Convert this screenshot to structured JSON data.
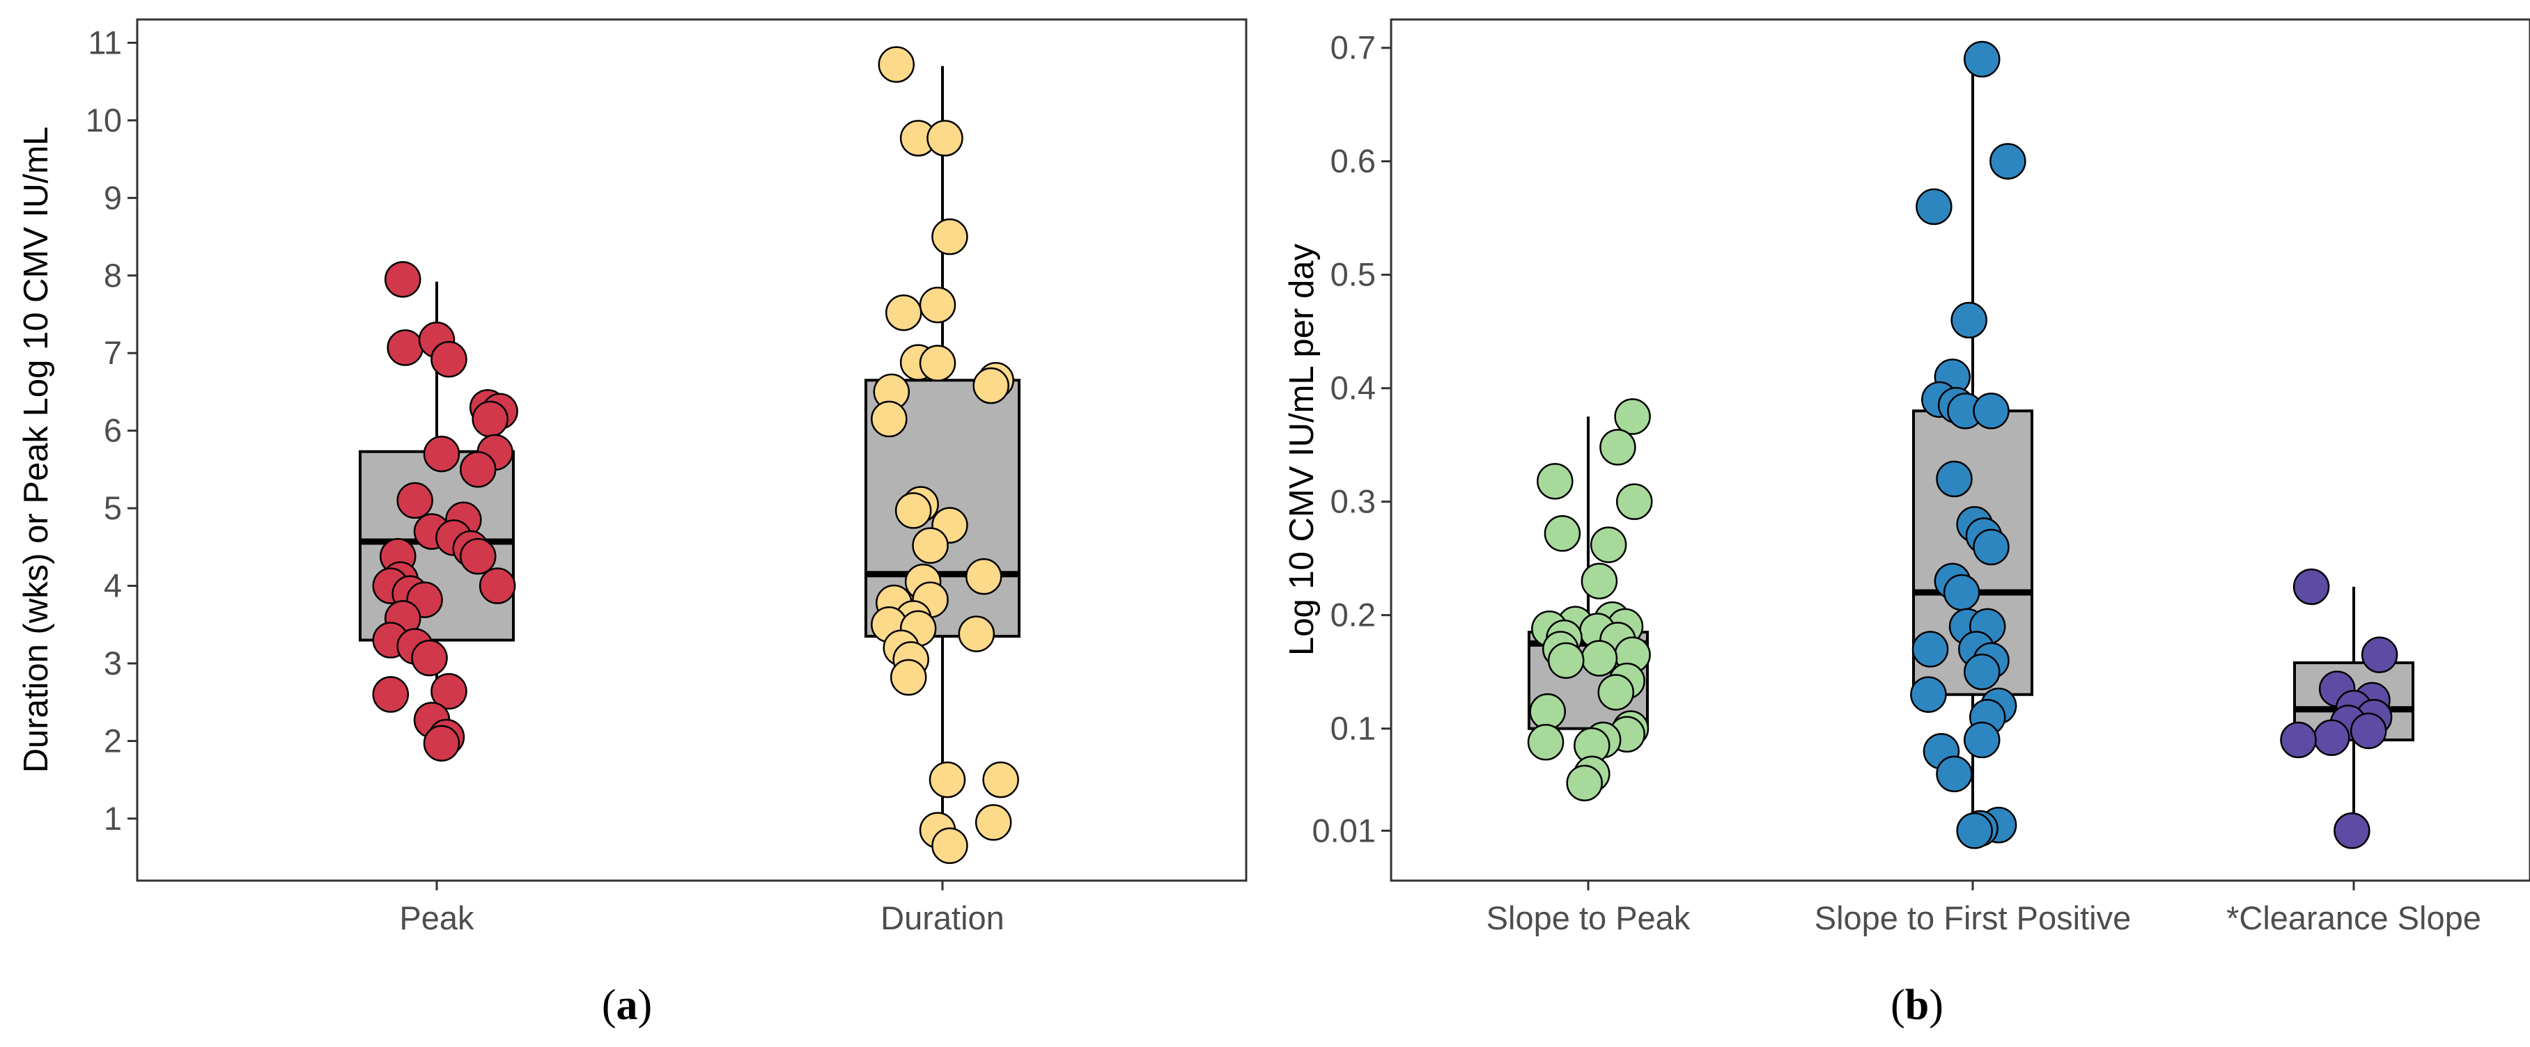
{
  "colors": {
    "peak": "#d1384b",
    "duration": "#fdd98a",
    "slope_to_peak": "#a6d99a",
    "slope_to_first_positive": "#2e86c1",
    "clearance_slope": "#5e4ba3",
    "box_fill": "#b3b3b3"
  },
  "chart_data": [
    {
      "type": "box",
      "panel_label": "a",
      "ylabel": "Duration (wks) or Peak Log 10 CMV IU/mL",
      "xlabel": "",
      "ylim": [
        0.2,
        11.3
      ],
      "yticks": [
        1,
        2,
        3,
        4,
        5,
        6,
        7,
        8,
        9,
        10,
        11
      ],
      "grid": false,
      "categories": [
        "Peak",
        "Duration"
      ],
      "series": [
        {
          "name": "Peak",
          "color_key": "peak",
          "box": {
            "q1": 3.3,
            "median": 4.57,
            "q3": 5.73,
            "whisker_low": 2.0,
            "whisker_high": 7.92
          },
          "points": [
            {
              "jitter": -0.14,
              "y": 7.95
            },
            {
              "jitter": -0.13,
              "y": 7.07
            },
            {
              "jitter": 0.0,
              "y": 7.17
            },
            {
              "jitter": 0.05,
              "y": 6.92
            },
            {
              "jitter": 0.21,
              "y": 6.3
            },
            {
              "jitter": 0.26,
              "y": 6.25
            },
            {
              "jitter": 0.22,
              "y": 6.15
            },
            {
              "jitter": 0.02,
              "y": 5.7
            },
            {
              "jitter": 0.24,
              "y": 5.72
            },
            {
              "jitter": 0.17,
              "y": 5.5
            },
            {
              "jitter": -0.09,
              "y": 5.1
            },
            {
              "jitter": 0.11,
              "y": 4.85
            },
            {
              "jitter": -0.02,
              "y": 4.7
            },
            {
              "jitter": 0.07,
              "y": 4.62
            },
            {
              "jitter": 0.14,
              "y": 4.48
            },
            {
              "jitter": -0.16,
              "y": 4.38
            },
            {
              "jitter": 0.17,
              "y": 4.38
            },
            {
              "jitter": -0.15,
              "y": 4.08
            },
            {
              "jitter": -0.19,
              "y": 4.0
            },
            {
              "jitter": 0.25,
              "y": 4.0
            },
            {
              "jitter": -0.11,
              "y": 3.9
            },
            {
              "jitter": -0.05,
              "y": 3.82
            },
            {
              "jitter": -0.14,
              "y": 3.58
            },
            {
              "jitter": -0.19,
              "y": 3.3
            },
            {
              "jitter": -0.09,
              "y": 3.22
            },
            {
              "jitter": -0.03,
              "y": 3.07
            },
            {
              "jitter": -0.19,
              "y": 2.6
            },
            {
              "jitter": 0.05,
              "y": 2.64
            },
            {
              "jitter": -0.02,
              "y": 2.27
            },
            {
              "jitter": 0.04,
              "y": 2.05
            },
            {
              "jitter": 0.02,
              "y": 1.97
            }
          ]
        },
        {
          "name": "Duration",
          "color_key": "duration",
          "box": {
            "q1": 3.35,
            "median": 4.15,
            "q3": 6.65,
            "whisker_low": 0.65,
            "whisker_high": 10.7
          },
          "points": [
            {
              "jitter": -0.19,
              "y": 10.72
            },
            {
              "jitter": -0.1,
              "y": 9.77
            },
            {
              "jitter": 0.01,
              "y": 9.77
            },
            {
              "jitter": 0.03,
              "y": 8.5
            },
            {
              "jitter": -0.02,
              "y": 7.62
            },
            {
              "jitter": -0.16,
              "y": 7.52
            },
            {
              "jitter": -0.1,
              "y": 6.88
            },
            {
              "jitter": -0.02,
              "y": 6.87
            },
            {
              "jitter": 0.22,
              "y": 6.65
            },
            {
              "jitter": 0.2,
              "y": 6.58
            },
            {
              "jitter": -0.21,
              "y": 6.5
            },
            {
              "jitter": -0.22,
              "y": 6.15
            },
            {
              "jitter": -0.09,
              "y": 5.05
            },
            {
              "jitter": -0.12,
              "y": 4.97
            },
            {
              "jitter": 0.03,
              "y": 4.78
            },
            {
              "jitter": -0.05,
              "y": 4.52
            },
            {
              "jitter": 0.17,
              "y": 4.12
            },
            {
              "jitter": -0.08,
              "y": 4.05
            },
            {
              "jitter": -0.05,
              "y": 3.82
            },
            {
              "jitter": -0.2,
              "y": 3.78
            },
            {
              "jitter": -0.12,
              "y": 3.58
            },
            {
              "jitter": -0.22,
              "y": 3.5
            },
            {
              "jitter": -0.1,
              "y": 3.45
            },
            {
              "jitter": 0.14,
              "y": 3.38
            },
            {
              "jitter": -0.17,
              "y": 3.2
            },
            {
              "jitter": -0.13,
              "y": 3.05
            },
            {
              "jitter": -0.14,
              "y": 2.82
            },
            {
              "jitter": 0.02,
              "y": 1.5
            },
            {
              "jitter": 0.24,
              "y": 1.5
            },
            {
              "jitter": 0.21,
              "y": 0.95
            },
            {
              "jitter": -0.02,
              "y": 0.85
            },
            {
              "jitter": 0.03,
              "y": 0.65
            }
          ]
        }
      ]
    },
    {
      "type": "box",
      "panel_label": "b",
      "ylabel": "Log 10 CMV IU/mL per day",
      "xlabel": "",
      "ylim": [
        -0.034,
        0.725
      ],
      "yticks": [
        0.01,
        0.1,
        0.2,
        0.3,
        0.4,
        0.5,
        0.6,
        0.7
      ],
      "grid": false,
      "categories": [
        "Slope to Peak",
        "Slope to First Positive",
        "*Clearance Slope"
      ],
      "series": [
        {
          "name": "Slope to Peak",
          "color_key": "slope_to_peak",
          "box": {
            "q1": 0.1,
            "median": 0.175,
            "q3": 0.185,
            "whisker_low": 0.05,
            "whisker_high": 0.375
          },
          "points": [
            {
              "jitter": 0.24,
              "y": 0.375
            },
            {
              "jitter": 0.16,
              "y": 0.348
            },
            {
              "jitter": -0.18,
              "y": 0.318
            },
            {
              "jitter": 0.25,
              "y": 0.3
            },
            {
              "jitter": -0.14,
              "y": 0.272
            },
            {
              "jitter": 0.11,
              "y": 0.262
            },
            {
              "jitter": 0.06,
              "y": 0.23
            },
            {
              "jitter": 0.13,
              "y": 0.196
            },
            {
              "jitter": -0.07,
              "y": 0.192
            },
            {
              "jitter": 0.2,
              "y": 0.19
            },
            {
              "jitter": -0.21,
              "y": 0.188
            },
            {
              "jitter": 0.05,
              "y": 0.186
            },
            {
              "jitter": -0.13,
              "y": 0.18
            },
            {
              "jitter": 0.16,
              "y": 0.178
            },
            {
              "jitter": -0.15,
              "y": 0.17
            },
            {
              "jitter": 0.24,
              "y": 0.165
            },
            {
              "jitter": 0.06,
              "y": 0.162
            },
            {
              "jitter": -0.12,
              "y": 0.16
            },
            {
              "jitter": 0.21,
              "y": 0.142
            },
            {
              "jitter": 0.15,
              "y": 0.132
            },
            {
              "jitter": -0.22,
              "y": 0.115
            },
            {
              "jitter": 0.23,
              "y": 0.1
            },
            {
              "jitter": 0.21,
              "y": 0.095
            },
            {
              "jitter": 0.08,
              "y": 0.09
            },
            {
              "jitter": -0.23,
              "y": 0.088
            },
            {
              "jitter": 0.02,
              "y": 0.085
            },
            {
              "jitter": 0.02,
              "y": 0.06
            },
            {
              "jitter": -0.02,
              "y": 0.052
            }
          ]
        },
        {
          "name": "Slope to First Positive",
          "color_key": "slope_to_first_positive",
          "box": {
            "q1": 0.13,
            "median": 0.22,
            "q3": 0.38,
            "whisker_low": 0.01,
            "whisker_high": 0.69
          },
          "points": [
            {
              "jitter": 0.05,
              "y": 0.69
            },
            {
              "jitter": 0.19,
              "y": 0.6
            },
            {
              "jitter": -0.21,
              "y": 0.56
            },
            {
              "jitter": -0.02,
              "y": 0.46
            },
            {
              "jitter": -0.11,
              "y": 0.41
            },
            {
              "jitter": -0.18,
              "y": 0.39
            },
            {
              "jitter": -0.09,
              "y": 0.385
            },
            {
              "jitter": -0.04,
              "y": 0.38
            },
            {
              "jitter": 0.1,
              "y": 0.38
            },
            {
              "jitter": -0.1,
              "y": 0.32
            },
            {
              "jitter": 0.01,
              "y": 0.28
            },
            {
              "jitter": 0.06,
              "y": 0.27
            },
            {
              "jitter": 0.1,
              "y": 0.26
            },
            {
              "jitter": -0.11,
              "y": 0.23
            },
            {
              "jitter": -0.06,
              "y": 0.22
            },
            {
              "jitter": -0.03,
              "y": 0.19
            },
            {
              "jitter": 0.08,
              "y": 0.19
            },
            {
              "jitter": 0.02,
              "y": 0.17
            },
            {
              "jitter": -0.23,
              "y": 0.17
            },
            {
              "jitter": 0.1,
              "y": 0.16
            },
            {
              "jitter": 0.05,
              "y": 0.15
            },
            {
              "jitter": -0.24,
              "y": 0.13
            },
            {
              "jitter": 0.14,
              "y": 0.12
            },
            {
              "jitter": 0.08,
              "y": 0.11
            },
            {
              "jitter": 0.05,
              "y": 0.09
            },
            {
              "jitter": -0.17,
              "y": 0.08
            },
            {
              "jitter": -0.1,
              "y": 0.06
            },
            {
              "jitter": 0.14,
              "y": 0.015
            },
            {
              "jitter": 0.04,
              "y": 0.012
            },
            {
              "jitter": 0.01,
              "y": 0.01
            }
          ]
        },
        {
          "name": "*Clearance Slope",
          "color_key": "clearance_slope",
          "box": {
            "q1": 0.09,
            "median": 0.117,
            "q3": 0.158,
            "whisker_low": 0.01,
            "whisker_high": 0.225
          },
          "points": [
            {
              "jitter": -0.23,
              "y": 0.225
            },
            {
              "jitter": 0.14,
              "y": 0.165
            },
            {
              "jitter": -0.09,
              "y": 0.135
            },
            {
              "jitter": 0.1,
              "y": 0.125
            },
            {
              "jitter": 0.0,
              "y": 0.118
            },
            {
              "jitter": 0.11,
              "y": 0.11
            },
            {
              "jitter": -0.03,
              "y": 0.105
            },
            {
              "jitter": 0.08,
              "y": 0.098
            },
            {
              "jitter": -0.12,
              "y": 0.092
            },
            {
              "jitter": -0.3,
              "y": 0.09
            },
            {
              "jitter": -0.01,
              "y": 0.01
            }
          ]
        }
      ]
    }
  ]
}
